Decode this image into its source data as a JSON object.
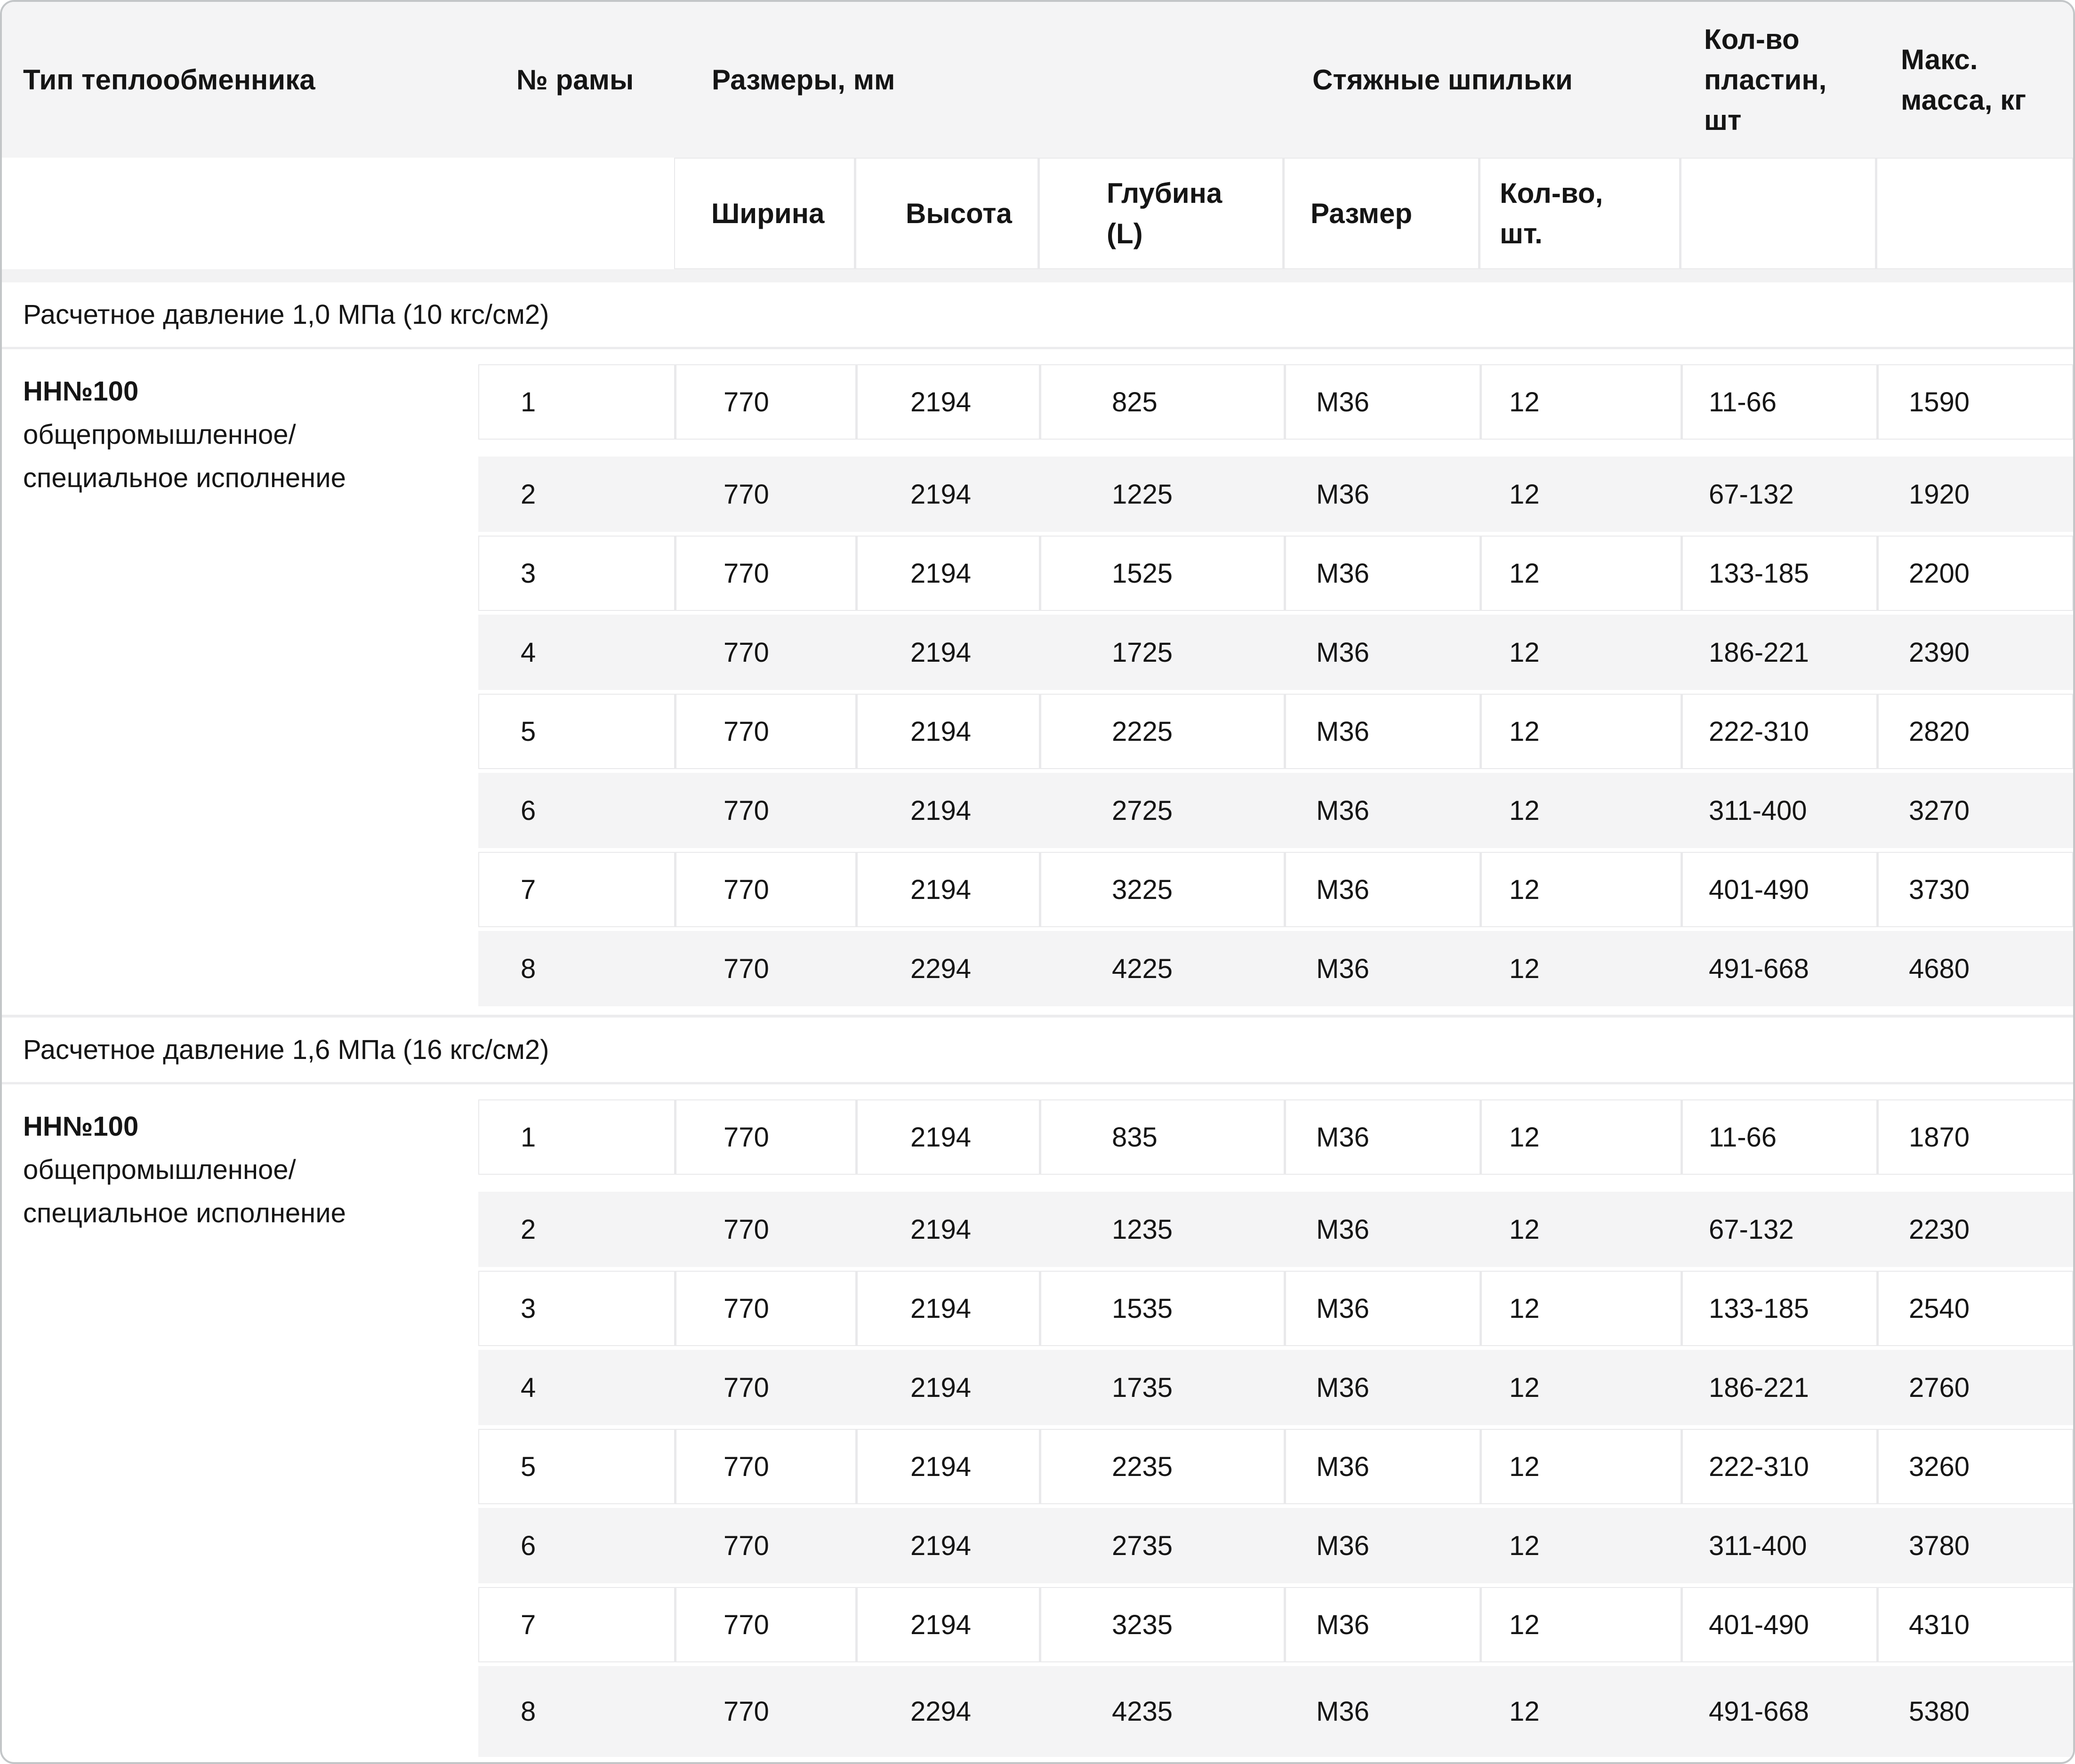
{
  "header": {
    "type": "Тип теплообменника",
    "frame": "№ рамы",
    "dims": "Размеры, мм",
    "studs": "Стяжные шпильки",
    "plates_lines": [
      "Кол-во",
      "пластин,",
      "шт"
    ],
    "mass_lines": [
      "Макс.",
      "масса, кг"
    ],
    "sub": {
      "width": "Ширина",
      "height": "Высота",
      "depth_lines": [
        "Глубина",
        "(L)"
      ],
      "size": "Размер",
      "qty_lines": [
        "Кол-во,",
        "шт."
      ]
    }
  },
  "sections": [
    {
      "pressure": "Расчетное давление 1,0 МПа (10 кгс/см2)",
      "type_name": "НН№100",
      "type_desc_lines": [
        "общепромышленное/",
        "специальное исполнение"
      ],
      "rows": [
        [
          "1",
          "770",
          "2194",
          "825",
          "М36",
          "12",
          "11-66",
          "1590"
        ],
        [
          "2",
          "770",
          "2194",
          "1225",
          "М36",
          "12",
          "67-132",
          "1920"
        ],
        [
          "3",
          "770",
          "2194",
          "1525",
          "М36",
          "12",
          "133-185",
          "2200"
        ],
        [
          "4",
          "770",
          "2194",
          "1725",
          "М36",
          "12",
          "186-221",
          "2390"
        ],
        [
          "5",
          "770",
          "2194",
          "2225",
          "М36",
          "12",
          "222-310",
          "2820"
        ],
        [
          "6",
          "770",
          "2194",
          "2725",
          "М36",
          "12",
          "311-400",
          "3270"
        ],
        [
          "7",
          "770",
          "2194",
          "3225",
          "М36",
          "12",
          "401-490",
          "3730"
        ],
        [
          "8",
          "770",
          "2294",
          "4225",
          "М36",
          "12",
          "491-668",
          "4680"
        ]
      ]
    },
    {
      "pressure": "Расчетное давление 1,6 МПа (16 кгс/см2)",
      "type_name": "НН№100",
      "type_desc_lines": [
        "общепромышленное/",
        "специальное исполнение"
      ],
      "rows": [
        [
          "1",
          "770",
          "2194",
          "835",
          "М36",
          "12",
          "11-66",
          "1870"
        ],
        [
          "2",
          "770",
          "2194",
          "1235",
          "М36",
          "12",
          "67-132",
          "2230"
        ],
        [
          "3",
          "770",
          "2194",
          "1535",
          "М36",
          "12",
          "133-185",
          "2540"
        ],
        [
          "4",
          "770",
          "2194",
          "1735",
          "М36",
          "12",
          "186-221",
          "2760"
        ],
        [
          "5",
          "770",
          "2194",
          "2235",
          "М36",
          "12",
          "222-310",
          "3260"
        ],
        [
          "6",
          "770",
          "2194",
          "2735",
          "М36",
          "12",
          "311-400",
          "3780"
        ],
        [
          "7",
          "770",
          "2194",
          "3235",
          "М36",
          "12",
          "401-490",
          "4310"
        ],
        [
          "8",
          "770",
          "2294",
          "4235",
          "М36",
          "12",
          "491-668",
          "5380"
        ]
      ]
    }
  ],
  "colors": {
    "header_band": "#f4f4f5",
    "row_stripe": "#f4f4f5",
    "separator": "#e9e9eb",
    "frame_border": "#c3c6c8",
    "text": "#151515"
  }
}
